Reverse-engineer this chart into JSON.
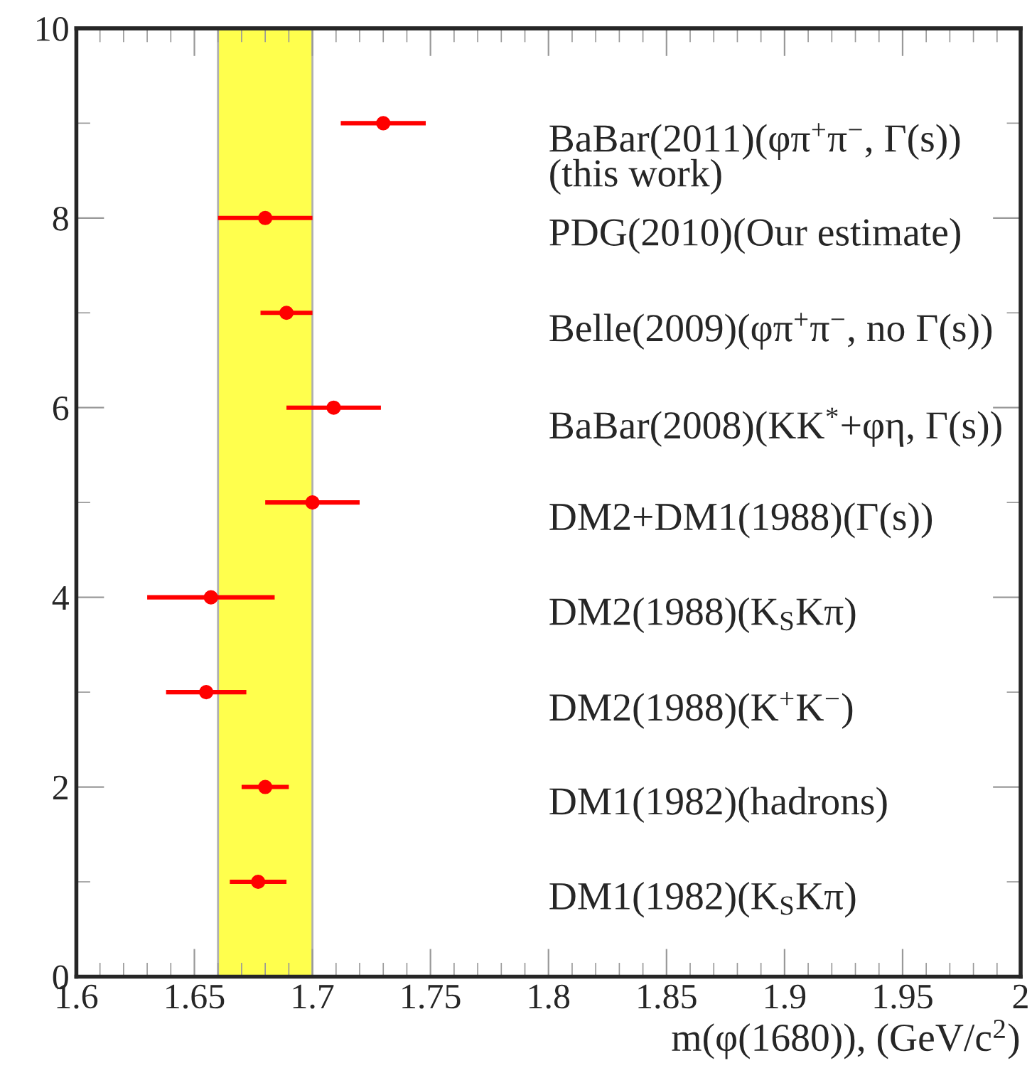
{
  "chart_data": {
    "type": "scatter",
    "xlabel": "m(φ(1680)), (GeV/c$^{2}$)",
    "xlim": [
      1.6,
      2.0
    ],
    "xticks": [
      1.6,
      1.65,
      1.7,
      1.75,
      1.8,
      1.85,
      1.9,
      1.95,
      2
    ],
    "ylim": [
      0,
      10
    ],
    "yticks": [
      0,
      2,
      4,
      6,
      8,
      10
    ],
    "grid": false,
    "legend": false,
    "marker": "circle",
    "series": [
      {
        "color": "#ff0000",
        "x": [
          1.73,
          1.68,
          1.689,
          1.709,
          1.7,
          1.657,
          1.655,
          1.68,
          1.677
        ],
        "values": [
          9,
          8,
          7,
          6,
          5,
          4,
          3,
          2,
          1
        ],
        "xerrors": [
          0.018,
          0.02,
          0.011,
          0.02,
          0.02,
          0.027,
          0.017,
          0.01,
          0.012
        ]
      }
    ],
    "bands": [
      {
        "axis": "x",
        "from": 1.66,
        "to": 1.7,
        "color": "#ffff4d"
      }
    ],
    "annotations": [
      "BaBar(2011)(φπ$^{+}$π$^{−}$, Γ(s))\n(this work)",
      "PDG(2010)(Our estimate)",
      "Belle(2009)(φπ$^{+}$π$^{−}$, no Γ(s))",
      "BaBar(2008)(KK$^{*}$+φη, Γ(s))",
      "DM2+DM1(1988)(Γ(s))",
      "DM2(1988)(K$_{S}$Kπ)",
      "DM2(1988)(K$^{+}$K$^{−}$)",
      "DM1(1982)(hadrons)",
      "DM1(1982)(K$_{S}$Kπ)"
    ]
  }
}
